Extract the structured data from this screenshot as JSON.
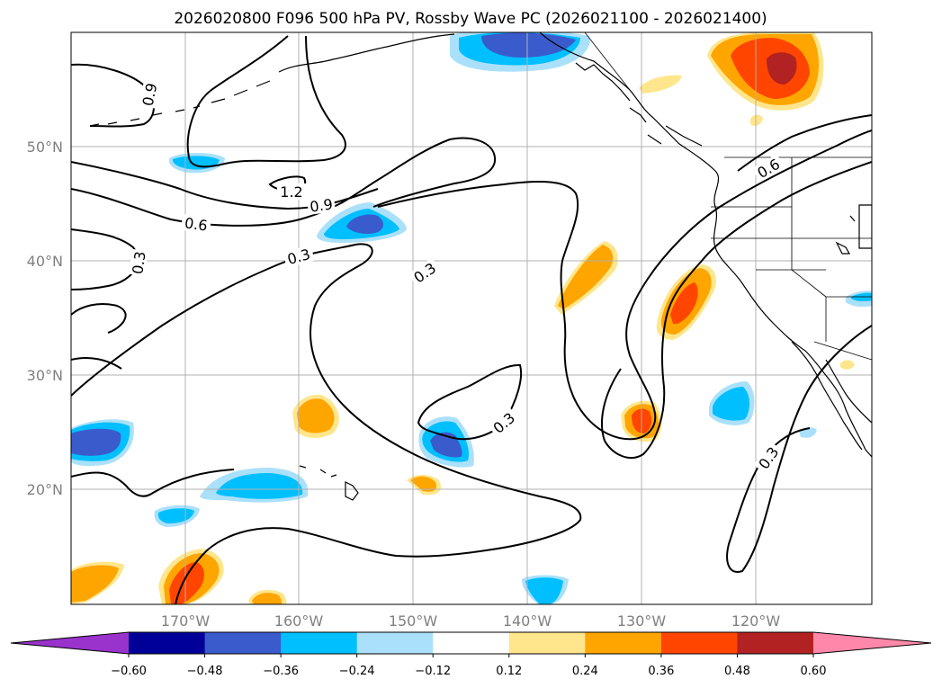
{
  "title": "2026020800 F096 500 hPa PV, Rossby Wave PC (2026021100 - 2026021400)",
  "map": {
    "lat_labels": [
      "50°N",
      "40°N",
      "30°N",
      "20°N"
    ],
    "lon_labels": [
      "170°W",
      "160°W",
      "150°W",
      "140°W",
      "130°W",
      "120°W"
    ]
  },
  "contour_labels": [
    "0.9",
    "1.2",
    "0.9",
    "0.6",
    "0.3",
    "0.3",
    "0.3",
    "0.3",
    "0.6",
    "0.3"
  ],
  "colorbar": {
    "ticks": [
      "−0.60",
      "−0.48",
      "−0.36",
      "−0.24",
      "−0.12",
      "0.12",
      "0.24",
      "0.36",
      "0.48",
      "0.60"
    ],
    "colors": [
      "#9933cc",
      "#000099",
      "#3a5bcc",
      "#00bfff",
      "#abe0fa",
      "#ffffff",
      "#ffe68c",
      "#ffa500",
      "#ff4500",
      "#b22222",
      "#ff88aa"
    ]
  },
  "colors": {
    "neg_dark": "#3a5bcc",
    "neg_mid": "#00bfff",
    "neg_light": "#abe0fa",
    "pos_light": "#ffe68c",
    "pos_mid": "#ffa500",
    "pos_strong": "#ff4500",
    "pos_dark": "#b22222",
    "contour": "#000000",
    "grid": "#b0b0b0"
  }
}
